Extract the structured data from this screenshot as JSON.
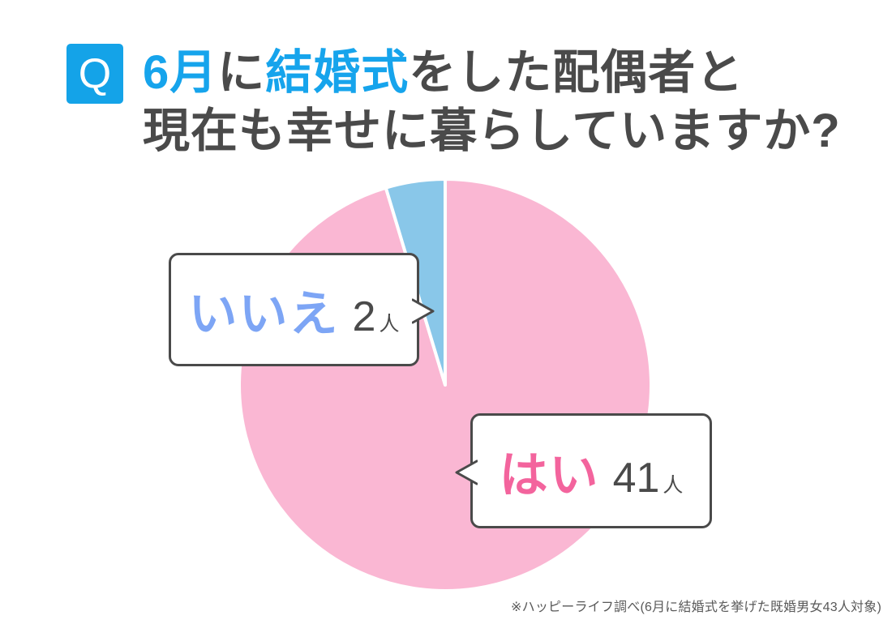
{
  "question": {
    "badge": "Q",
    "line1_parts": [
      {
        "text": "6月",
        "style": "blue"
      },
      {
        "text": "に",
        "style": "dark"
      },
      {
        "text": "結婚式",
        "style": "blue"
      },
      {
        "text": "をした配偶者と",
        "style": "dark"
      }
    ],
    "line2": "現在も幸せに暮らしていますか?"
  },
  "chart_data": {
    "type": "pie",
    "title": "6月に結婚式をした配偶者と現在も幸せに暮らしていますか?",
    "unit": "人",
    "total": 43,
    "start_angle_deg": 0,
    "direction": "clockwise",
    "legend_position": "callout-bubbles",
    "slices": [
      {
        "label": "はい",
        "value": 41,
        "color": "#fab7d3",
        "label_color": "#f3649d"
      },
      {
        "label": "いいえ",
        "value": 2,
        "color": "#89c7e9",
        "label_color": "#7da5f5"
      }
    ]
  },
  "footer": {
    "note": "※ハッピーライフ調べ(6月に結婚式を挙げた既婚男女43人対象)"
  },
  "colors": {
    "badge_bg": "#14a3e8",
    "title_highlight": "#16a4ec",
    "title_dark": "#4a4a4a",
    "bubble_border": "#4a4a4a",
    "slice_separator": "#ffffff"
  }
}
